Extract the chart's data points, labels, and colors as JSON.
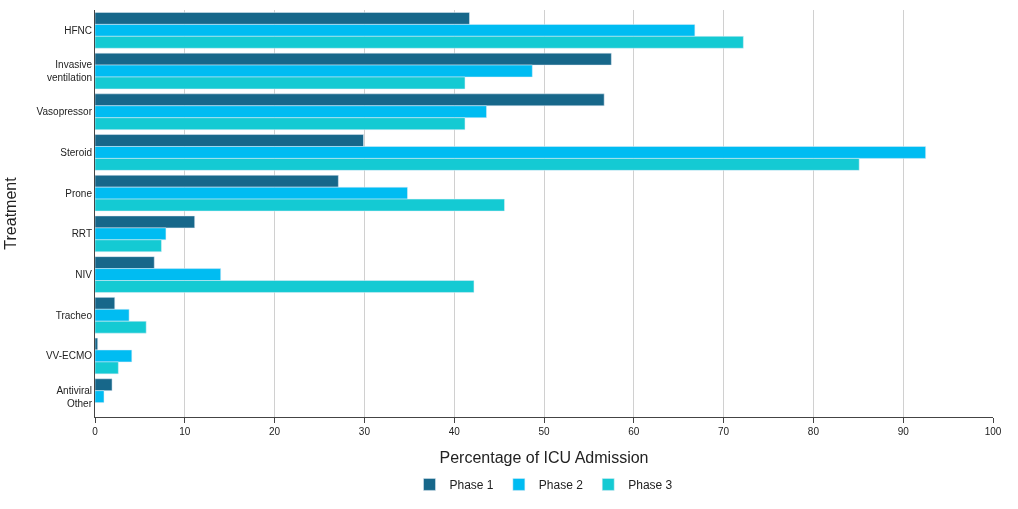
{
  "chart_data": {
    "type": "bar",
    "orientation": "horizontal",
    "xlabel": "Percentage of ICU Admission",
    "ylabel": "Treatment",
    "categories": [
      "HFNC",
      "Invasive\nventilation",
      "Vasopressor",
      "Steroid",
      "Prone",
      "RRT",
      "NIV",
      "Tracheo",
      "VV-ECMO",
      "Antiviral\nOther"
    ],
    "series": [
      {
        "name": "Phase 1",
        "color": "#17678a",
        "values": [
          41.7,
          57.5,
          56.7,
          29.9,
          27.1,
          11.1,
          6.6,
          2.2,
          0.3,
          1.9
        ]
      },
      {
        "name": "Phase 2",
        "color": "#00bcf2",
        "values": [
          66.8,
          48.7,
          43.6,
          92.5,
          34.8,
          7.9,
          14.0,
          3.8,
          4.1,
          1.0
        ]
      },
      {
        "name": "Phase 3",
        "color": "#14cad3",
        "values": [
          72.2,
          41.2,
          41.2,
          85.1,
          45.6,
          7.4,
          42.2,
          5.7,
          2.6,
          null
        ]
      }
    ],
    "xlim": [
      0,
      100
    ],
    "xticks": [
      0,
      10,
      20,
      30,
      40,
      50,
      60,
      70,
      80,
      90,
      100
    ],
    "grid": "x",
    "legend": "bottom"
  }
}
